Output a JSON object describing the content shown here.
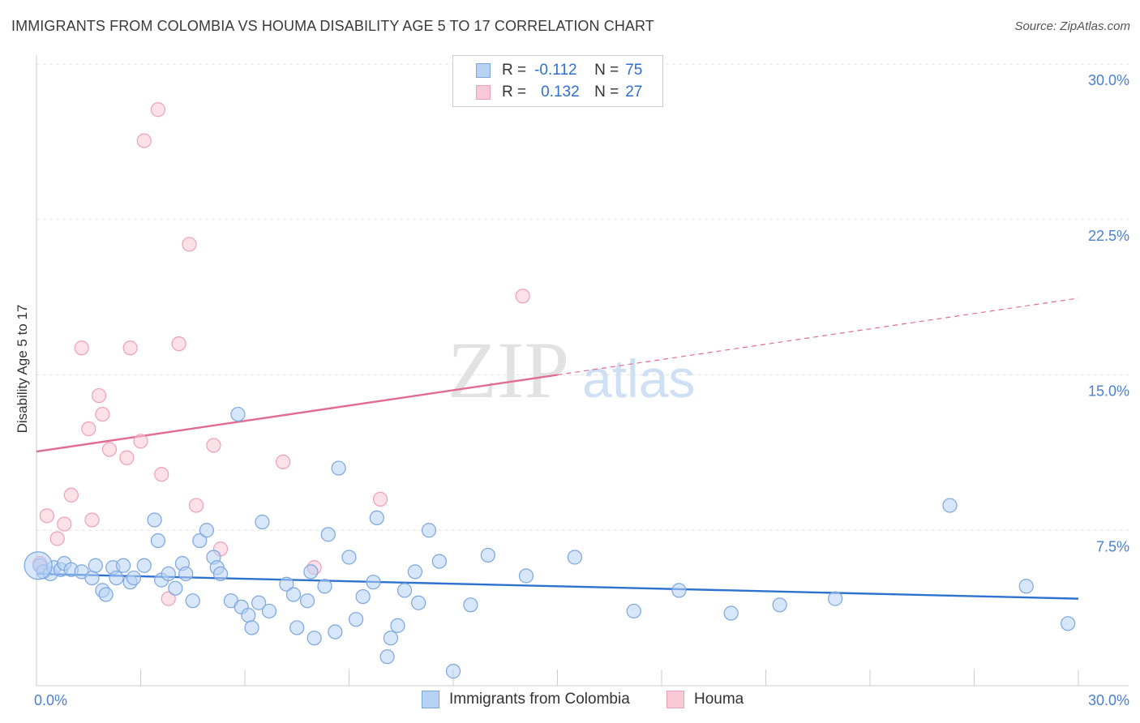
{
  "title": "IMMIGRANTS FROM COLOMBIA VS HOUMA DISABILITY AGE 5 TO 17 CORRELATION CHART",
  "source": "Source: ZipAtlas.com",
  "watermark": {
    "zip": "ZIP",
    "atlas": "atlas"
  },
  "stats": {
    "r_key": "R =",
    "n_key": "N =",
    "series1": {
      "r": "-0.112",
      "n": "75"
    },
    "series2": {
      "r": "0.132",
      "n": "27"
    }
  },
  "legend": {
    "series1": "Immigrants from Colombia",
    "series2": "Houma"
  },
  "colors": {
    "series1_fill": "#b8d2f4",
    "series1_stroke": "#7aa6e0",
    "series1_line": "#2e72cf",
    "series2_fill": "#f9c9d7",
    "series2_stroke": "#ee9fb8",
    "series2_line": "#e26b93",
    "axis_text": "#4a7fd1",
    "grid": "#e3e3e3"
  },
  "chart_data": {
    "type": "scatter",
    "title": "IMMIGRANTS FROM COLOMBIA VS HOUMA DISABILITY AGE 5 TO 17 CORRELATION CHART",
    "xlabel": "",
    "ylabel": "Disability Age 5 to 17",
    "xlim": [
      0,
      30
    ],
    "ylim": [
      0,
      30
    ],
    "x_tick_labels": [
      "0.0%",
      "30.0%"
    ],
    "y_ticks": [
      7.5,
      15.0,
      22.5,
      30.0
    ],
    "y_tick_labels": [
      "7.5%",
      "15.0%",
      "22.5%",
      "30.0%"
    ],
    "grid": "horizontal dashed",
    "legend_position": "bottom-center",
    "series": [
      {
        "name": "Immigrants from Colombia",
        "r": -0.112,
        "n": 75,
        "trend": {
          "x": [
            0,
            30
          ],
          "y": [
            5.4,
            4.2
          ]
        },
        "points": [
          [
            0.1,
            5.8
          ],
          [
            0.2,
            5.5
          ],
          [
            0.4,
            5.4
          ],
          [
            0.5,
            5.7
          ],
          [
            0.7,
            5.6
          ],
          [
            0.8,
            5.9
          ],
          [
            1.0,
            5.6
          ],
          [
            1.3,
            5.5
          ],
          [
            1.6,
            5.2
          ],
          [
            1.7,
            5.8
          ],
          [
            1.9,
            4.6
          ],
          [
            2.0,
            4.4
          ],
          [
            2.2,
            5.7
          ],
          [
            2.3,
            5.2
          ],
          [
            2.5,
            5.8
          ],
          [
            2.7,
            5.0
          ],
          [
            2.8,
            5.2
          ],
          [
            3.1,
            5.8
          ],
          [
            3.4,
            8.0
          ],
          [
            3.5,
            7.0
          ],
          [
            3.6,
            5.1
          ],
          [
            3.8,
            5.4
          ],
          [
            4.0,
            4.7
          ],
          [
            4.2,
            5.9
          ],
          [
            4.3,
            5.4
          ],
          [
            4.5,
            4.1
          ],
          [
            4.7,
            7.0
          ],
          [
            4.9,
            7.5
          ],
          [
            5.1,
            6.2
          ],
          [
            5.2,
            5.7
          ],
          [
            5.3,
            5.4
          ],
          [
            5.6,
            4.1
          ],
          [
            5.8,
            13.1
          ],
          [
            5.9,
            3.8
          ],
          [
            6.1,
            3.4
          ],
          [
            6.2,
            2.8
          ],
          [
            6.4,
            4.0
          ],
          [
            6.5,
            7.9
          ],
          [
            6.7,
            3.6
          ],
          [
            7.2,
            4.9
          ],
          [
            7.4,
            4.4
          ],
          [
            7.5,
            2.8
          ],
          [
            7.8,
            4.1
          ],
          [
            7.9,
            5.5
          ],
          [
            8.0,
            2.3
          ],
          [
            8.3,
            4.8
          ],
          [
            8.4,
            7.3
          ],
          [
            8.6,
            2.6
          ],
          [
            8.7,
            10.5
          ],
          [
            9.0,
            6.2
          ],
          [
            9.2,
            3.2
          ],
          [
            9.4,
            4.3
          ],
          [
            9.7,
            5.0
          ],
          [
            9.8,
            8.1
          ],
          [
            10.1,
            1.4
          ],
          [
            10.2,
            2.3
          ],
          [
            10.4,
            2.9
          ],
          [
            10.6,
            4.6
          ],
          [
            10.9,
            5.5
          ],
          [
            11.0,
            4.0
          ],
          [
            11.3,
            7.5
          ],
          [
            11.6,
            6.0
          ],
          [
            12.0,
            0.7
          ],
          [
            12.5,
            3.9
          ],
          [
            13.0,
            6.3
          ],
          [
            14.1,
            5.3
          ],
          [
            15.5,
            6.2
          ],
          [
            17.2,
            3.6
          ],
          [
            18.5,
            4.6
          ],
          [
            20.0,
            3.5
          ],
          [
            21.4,
            3.9
          ],
          [
            23.0,
            4.2
          ],
          [
            26.3,
            8.7
          ],
          [
            29.7,
            3.0
          ],
          [
            28.5,
            4.8
          ]
        ]
      },
      {
        "name": "Houma",
        "r": 0.132,
        "n": 27,
        "trend": {
          "x": [
            0,
            15
          ],
          "y": [
            11.3,
            15.0
          ]
        },
        "trend_dashed": {
          "x": [
            15,
            30
          ],
          "y": [
            15.0,
            18.7
          ]
        },
        "points": [
          [
            0.1,
            5.9
          ],
          [
            0.3,
            8.2
          ],
          [
            0.6,
            7.1
          ],
          [
            0.8,
            7.8
          ],
          [
            1.0,
            9.2
          ],
          [
            1.3,
            16.3
          ],
          [
            1.5,
            12.4
          ],
          [
            1.6,
            8.0
          ],
          [
            1.8,
            14.0
          ],
          [
            1.9,
            13.1
          ],
          [
            2.1,
            11.4
          ],
          [
            2.6,
            11.0
          ],
          [
            2.7,
            16.3
          ],
          [
            3.0,
            11.8
          ],
          [
            3.1,
            26.3
          ],
          [
            3.5,
            27.8
          ],
          [
            3.6,
            10.2
          ],
          [
            3.8,
            4.2
          ],
          [
            4.1,
            16.5
          ],
          [
            4.4,
            21.3
          ],
          [
            4.6,
            8.7
          ],
          [
            5.1,
            11.6
          ],
          [
            5.3,
            6.6
          ],
          [
            7.1,
            10.8
          ],
          [
            8.0,
            5.7
          ],
          [
            9.9,
            9.0
          ],
          [
            14.0,
            18.8
          ]
        ]
      }
    ]
  }
}
